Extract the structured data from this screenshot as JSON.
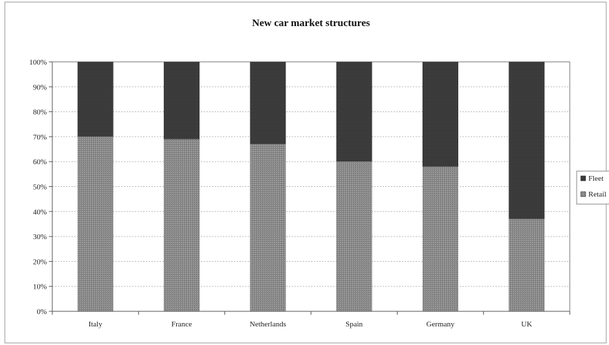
{
  "chart_data": {
    "type": "bar",
    "stacked": true,
    "title": "New car market structures",
    "xlabel": "",
    "ylabel": "",
    "categories": [
      "Italy",
      "France",
      "Netherlands",
      "Spain",
      "Germany",
      "UK"
    ],
    "series": [
      {
        "name": "Retail",
        "values": [
          70,
          69,
          67,
          60,
          58,
          37
        ]
      },
      {
        "name": "Fleet",
        "values": [
          30,
          31,
          33,
          40,
          42,
          63
        ]
      }
    ],
    "ylim": [
      0,
      100
    ],
    "yticks": [
      "0%",
      "10%",
      "20%",
      "30%",
      "40%",
      "50%",
      "60%",
      "70%",
      "80%",
      "90%",
      "100%"
    ],
    "grid": true,
    "legend_position": "right",
    "legend": [
      "Fleet",
      "Retail"
    ],
    "colors": {
      "Fleet": "#3a3a3a",
      "Retail": "#8a8a8a",
      "grid": "#bbbbbb",
      "frame": "#777777"
    }
  }
}
